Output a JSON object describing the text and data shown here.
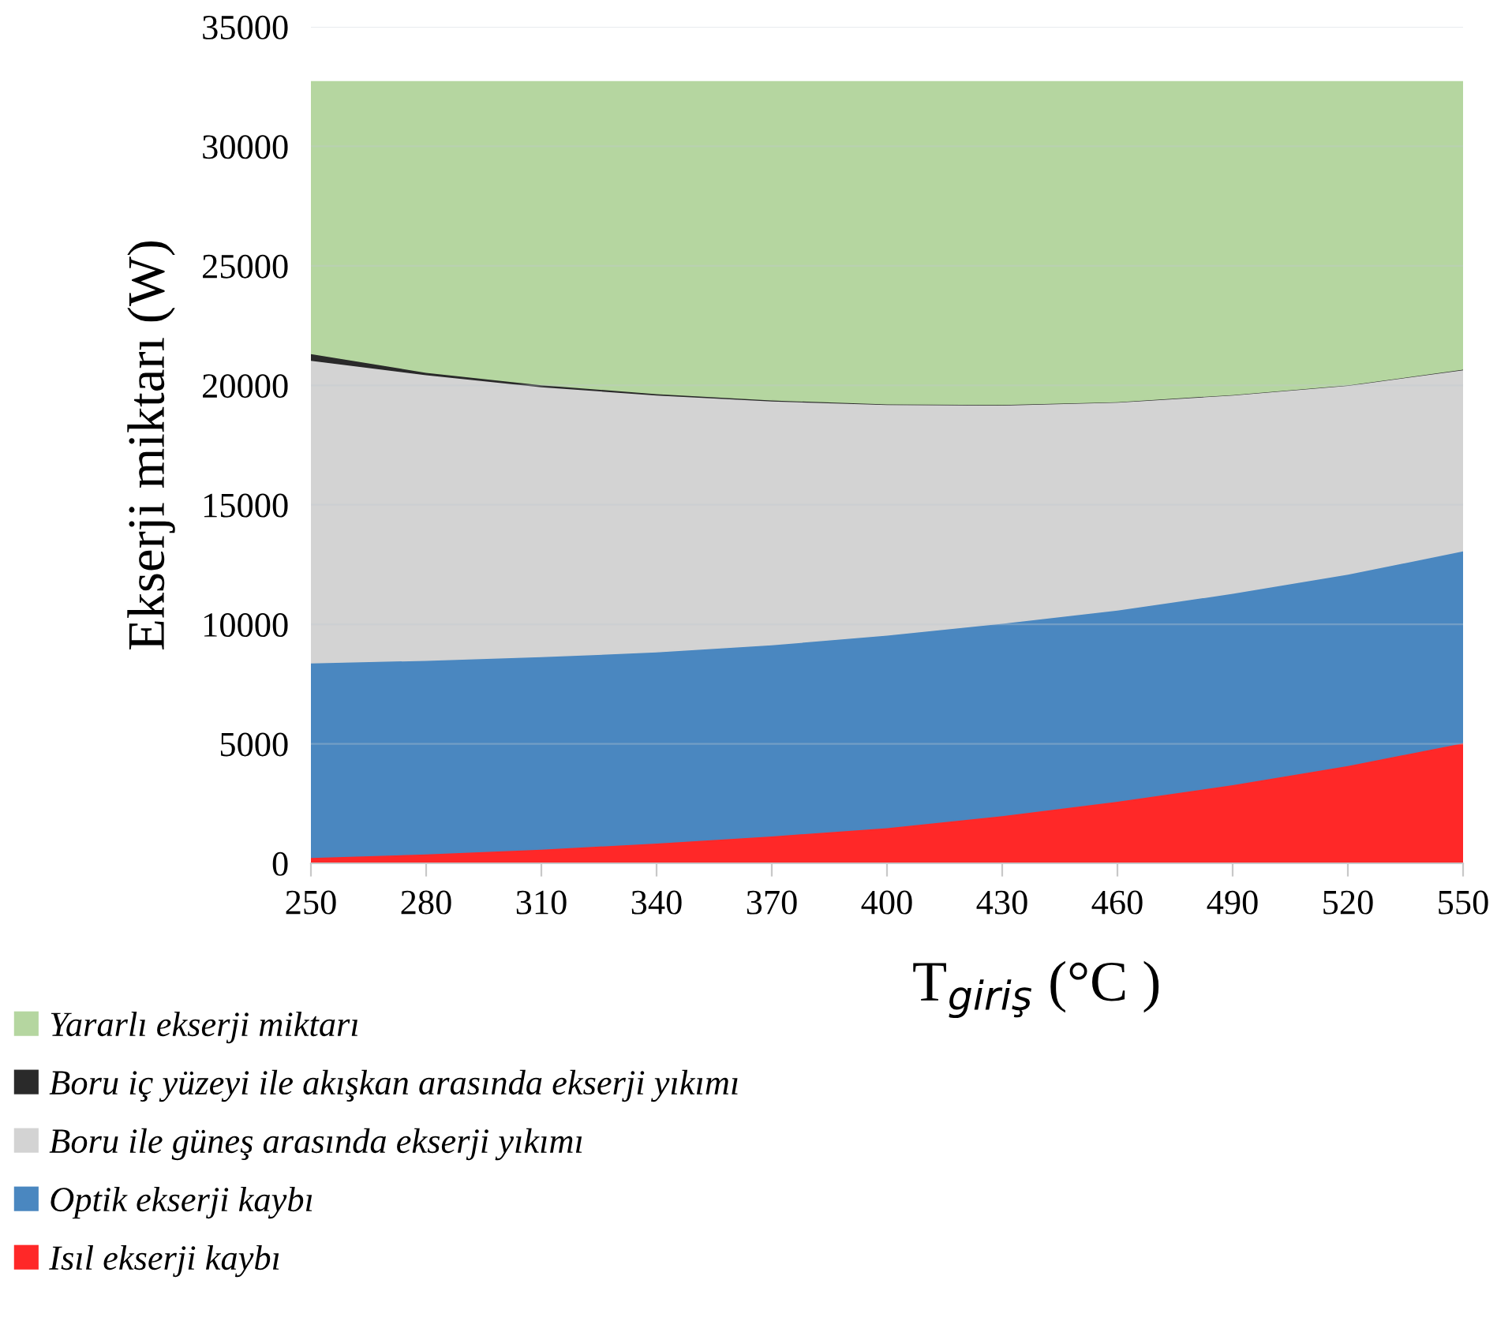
{
  "chart_data": {
    "type": "area",
    "stacked": true,
    "xlabel": "T$_{giriş}$ (°C )",
    "ylabel": "Ekserji miktarı (W)",
    "x": [
      250,
      280,
      310,
      340,
      370,
      400,
      430,
      460,
      490,
      520,
      550
    ],
    "series": [
      {
        "name": "Isıl ekserji kaybı",
        "color": "#ff2828",
        "values": [
          250,
          400,
          600,
          850,
          1150,
          1500,
          2000,
          2600,
          3300,
          4100,
          5050
        ]
      },
      {
        "name": "Optik ekserji kaybı",
        "color": "#4a87c0",
        "values": [
          8140,
          8100,
          8050,
          8000,
          8000,
          8050,
          8050,
          8000,
          8000,
          8000,
          8030
        ]
      },
      {
        "name": "Boru ile güneş arasında ekserji yıkımı",
        "color": "#d3d3d3",
        "values": [
          12660,
          11950,
          11300,
          10750,
          10200,
          9650,
          9130,
          8700,
          8300,
          7900,
          7580
        ]
      },
      {
        "name": "Boru iç yüzeyi ile akışkan arasında ekserji yıkımı",
        "color": "#2a2a2a",
        "values": [
          280,
          100,
          80,
          60,
          40,
          30,
          20,
          20,
          20,
          20,
          20
        ]
      },
      {
        "name": "Yararlı ekserji miktarı",
        "color": "#b5d6a0",
        "values": [
          11370,
          12150,
          12670,
          13040,
          13310,
          13470,
          13500,
          13380,
          13080,
          12680,
          12020
        ]
      }
    ],
    "xlim": [
      250,
      550
    ],
    "xticks": [
      250,
      280,
      310,
      340,
      370,
      400,
      430,
      460,
      490,
      520,
      550
    ],
    "ylim": [
      0,
      35000
    ],
    "yticks": [
      0,
      5000,
      10000,
      15000,
      20000,
      25000,
      30000,
      35000
    ],
    "grid": "y",
    "legend": "bottom left"
  }
}
